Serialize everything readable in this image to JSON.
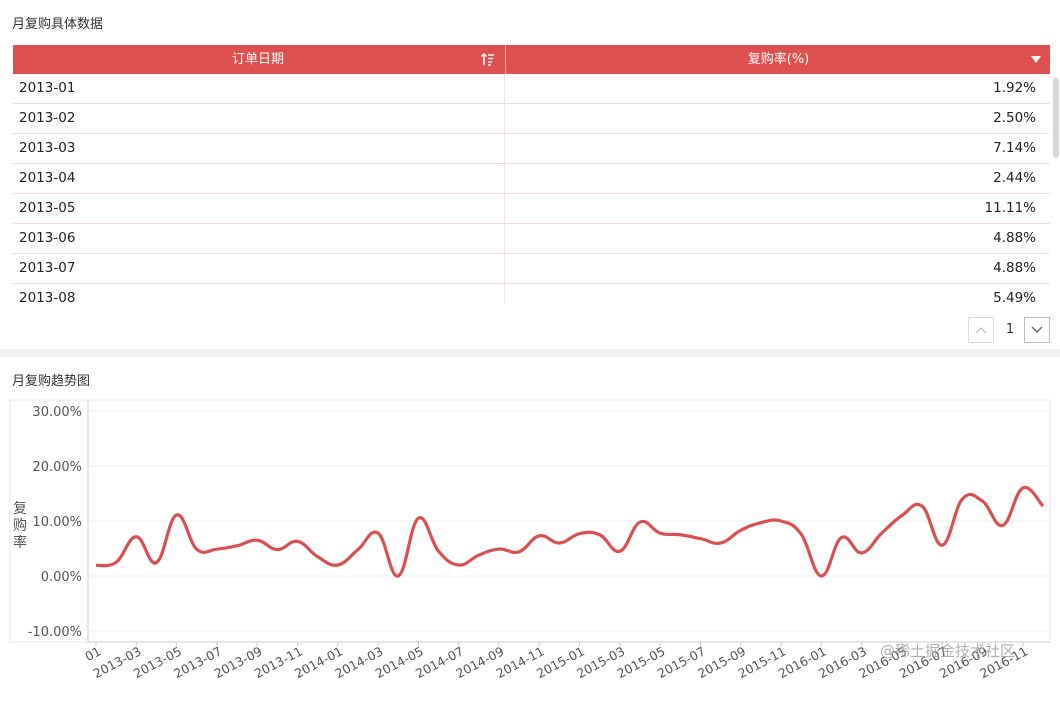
{
  "table_panel": {
    "title": "月复购具体数据",
    "columns": {
      "date": "订单日期",
      "rate": "复购率(%)"
    },
    "rows": [
      {
        "date": "2013-01",
        "rate": "1.92%"
      },
      {
        "date": "2013-02",
        "rate": "2.50%"
      },
      {
        "date": "2013-03",
        "rate": "7.14%"
      },
      {
        "date": "2013-04",
        "rate": "2.44%"
      },
      {
        "date": "2013-05",
        "rate": "11.11%"
      },
      {
        "date": "2013-06",
        "rate": "4.88%"
      },
      {
        "date": "2013-07",
        "rate": "4.88%"
      },
      {
        "date": "2013-08",
        "rate": "5.49%"
      }
    ],
    "pager": {
      "page": "1"
    },
    "header_color": "#de4f4f"
  },
  "chart_panel": {
    "title": "月复购趋势图",
    "watermark": "@稀土掘金技术社区"
  },
  "chart_data": {
    "type": "line",
    "title": "月复购趋势图",
    "ylabel": "复购率",
    "ylim": [
      -12,
      32
    ],
    "yticks": [
      "30.00%",
      "20.00%",
      "10.00%",
      "0.00%",
      "-10.00%"
    ],
    "ytick_values": [
      30,
      20,
      10,
      0,
      -10
    ],
    "xtick_labels": [
      "01",
      "2013-03",
      "2013-05",
      "2013-07",
      "2013-09",
      "2013-11",
      "2014-01",
      "2014-03",
      "2014-05",
      "2014-07",
      "2014-09",
      "2014-11",
      "2015-01",
      "2015-03",
      "2015-05",
      "2015-07",
      "2015-09",
      "2015-11",
      "2016-01",
      "2016-03",
      "2016-05",
      "2016-07",
      "2016-09",
      "2016-11"
    ],
    "grid": true,
    "line_color": "#d94f52",
    "series": [
      {
        "x": [
          "2013-01",
          "2013-02",
          "2013-03",
          "2013-04",
          "2013-05",
          "2013-06",
          "2013-07",
          "2013-08",
          "2013-09",
          "2013-10",
          "2013-11",
          "2013-12",
          "2014-01",
          "2014-02",
          "2014-03",
          "2014-04",
          "2014-05",
          "2014-06",
          "2014-07",
          "2014-08",
          "2014-09",
          "2014-10",
          "2014-11",
          "2014-12",
          "2015-01",
          "2015-02",
          "2015-03",
          "2015-04",
          "2015-05",
          "2015-06",
          "2015-07",
          "2015-08",
          "2015-09",
          "2015-10",
          "2015-11",
          "2015-12",
          "2016-01",
          "2016-02",
          "2016-03",
          "2016-04",
          "2016-05",
          "2016-06",
          "2016-07",
          "2016-08",
          "2016-09",
          "2016-10",
          "2016-11",
          "2016-12"
        ],
        "values": [
          1.92,
          2.5,
          7.14,
          2.44,
          11.11,
          4.88,
          4.88,
          5.49,
          6.5,
          4.8,
          6.3,
          3.5,
          2.0,
          4.8,
          7.8,
          0.0,
          10.5,
          4.5,
          2.0,
          3.8,
          4.9,
          4.4,
          7.3,
          6.0,
          7.7,
          7.5,
          4.5,
          9.8,
          7.8,
          7.5,
          6.8,
          6.0,
          8.3,
          9.7,
          10.0,
          7.6,
          0.0,
          7.0,
          4.2,
          7.8,
          11.0,
          12.7,
          5.6,
          14.0,
          13.6,
          9.2,
          16.0,
          12.7
        ]
      }
    ]
  }
}
